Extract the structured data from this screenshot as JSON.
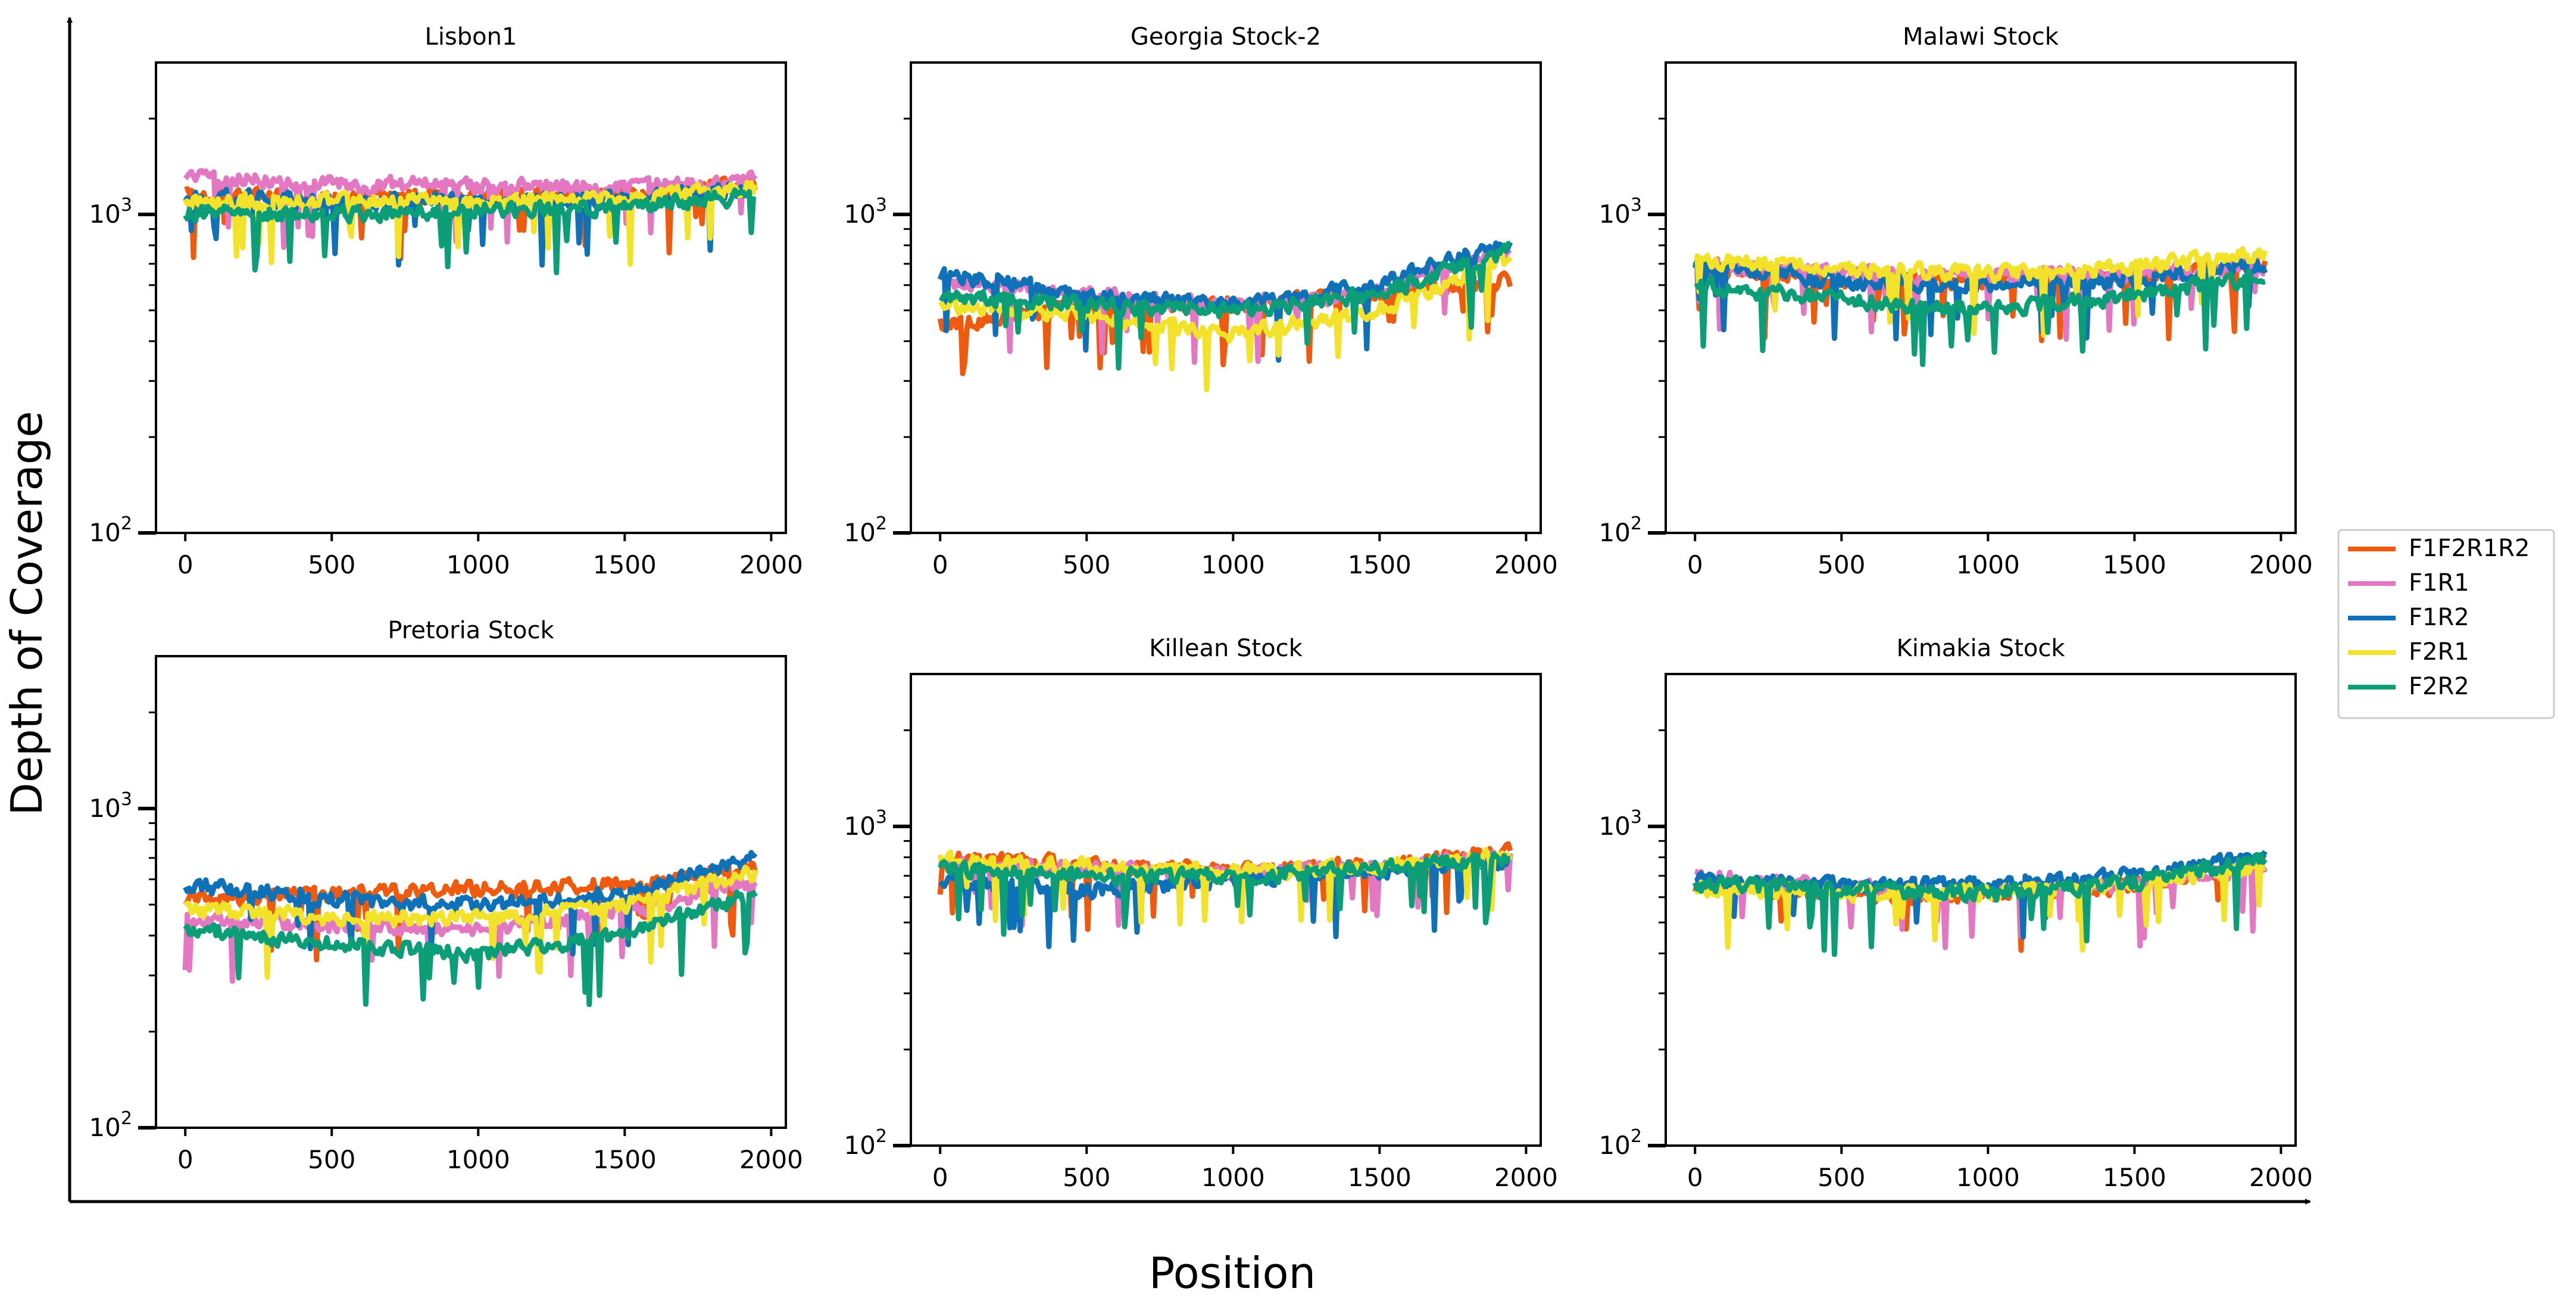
{
  "figure": {
    "ylabel": "Depth of Coverage",
    "xlabel": "Position"
  },
  "legend": {
    "placement": "right",
    "entries": [
      {
        "name": "F1F2R1R2",
        "color": "#F05A0F"
      },
      {
        "name": "F1R1",
        "color": "#E377C2"
      },
      {
        "name": "F1R2",
        "color": "#0F72B8"
      },
      {
        "name": "F2R1",
        "color": "#F2E22A"
      },
      {
        "name": "F2R2",
        "color": "#0B9E77"
      }
    ]
  },
  "chart_data": [
    {
      "type": "line",
      "title": "Lisbon1",
      "yscale": "log",
      "xlim": [
        -100,
        2050
      ],
      "ylim": [
        100,
        3000
      ],
      "xticks": [
        "0",
        "500",
        "1000",
        "1500",
        "2000"
      ],
      "yticks": [
        "10^2",
        "10^3"
      ],
      "series": [
        {
          "name": "F1F2R1R2",
          "levels": [
            [
              0,
              1150
            ],
            [
              500,
              1120
            ],
            [
              1000,
              1150
            ],
            [
              1500,
              1150
            ],
            [
              1950,
              1250
            ]
          ]
        },
        {
          "name": "F1R1",
          "levels": [
            [
              0,
              1300
            ],
            [
              500,
              1250
            ],
            [
              1000,
              1230
            ],
            [
              1500,
              1220
            ],
            [
              1950,
              1280
            ]
          ]
        },
        {
          "name": "F1R2",
          "levels": [
            [
              0,
              1150
            ],
            [
              500,
              1100
            ],
            [
              1000,
              1100
            ],
            [
              1500,
              1120
            ],
            [
              1950,
              1200
            ]
          ]
        },
        {
          "name": "F2R1",
          "levels": [
            [
              0,
              1100
            ],
            [
              500,
              1100
            ],
            [
              1000,
              1100
            ],
            [
              1500,
              1120
            ],
            [
              1950,
              1220
            ]
          ]
        },
        {
          "name": "F2R2",
          "levels": [
            [
              0,
              1020
            ],
            [
              500,
              1000
            ],
            [
              1000,
              1030
            ],
            [
              1500,
              1050
            ],
            [
              1950,
              1150
            ]
          ]
        }
      ]
    },
    {
      "type": "line",
      "title": "Georgia Stock-2",
      "yscale": "log",
      "xlim": [
        -100,
        2050
      ],
      "ylim": [
        100,
        3000
      ],
      "xticks": [
        "0",
        "500",
        "1000",
        "1500",
        "2000"
      ],
      "yticks": [
        "10^2",
        "10^3"
      ],
      "series": [
        {
          "name": "F1F2R1R2",
          "levels": [
            [
              0,
              450
            ],
            [
              500,
              520
            ],
            [
              1000,
              520
            ],
            [
              1500,
              560
            ],
            [
              1950,
              620
            ]
          ]
        },
        {
          "name": "F1R1",
          "levels": [
            [
              0,
              620
            ],
            [
              500,
              560
            ],
            [
              1000,
              520
            ],
            [
              1500,
              580
            ],
            [
              1950,
              780
            ]
          ]
        },
        {
          "name": "F1R2",
          "levels": [
            [
              0,
              650
            ],
            [
              500,
              560
            ],
            [
              1000,
              520
            ],
            [
              1500,
              600
            ],
            [
              1950,
              820
            ]
          ]
        },
        {
          "name": "F2R1",
          "levels": [
            [
              0,
              520
            ],
            [
              500,
              480
            ],
            [
              1000,
              420
            ],
            [
              1500,
              500
            ],
            [
              1950,
              720
            ]
          ]
        },
        {
          "name": "F2R2",
          "levels": [
            [
              0,
              560
            ],
            [
              500,
              520
            ],
            [
              1000,
              500
            ],
            [
              1500,
              560
            ],
            [
              1950,
              780
            ]
          ]
        }
      ]
    },
    {
      "type": "line",
      "title": "Malawi Stock",
      "yscale": "log",
      "xlim": [
        -100,
        2050
      ],
      "ylim": [
        100,
        3000
      ],
      "xticks": [
        "0",
        "500",
        "1000",
        "1500",
        "2000"
      ],
      "yticks": [
        "10^2",
        "10^3"
      ],
      "series": [
        {
          "name": "F1F2R1R2",
          "levels": [
            [
              0,
              680
            ],
            [
              500,
              620
            ],
            [
              1000,
              620
            ],
            [
              1500,
              640
            ],
            [
              1950,
              700
            ]
          ]
        },
        {
          "name": "F1R1",
          "levels": [
            [
              0,
              700
            ],
            [
              500,
              650
            ],
            [
              1000,
              640
            ],
            [
              1500,
              650
            ],
            [
              1950,
              700
            ]
          ]
        },
        {
          "name": "F1R2",
          "levels": [
            [
              0,
              700
            ],
            [
              500,
              620
            ],
            [
              1000,
              600
            ],
            [
              1500,
              630
            ],
            [
              1950,
              690
            ]
          ]
        },
        {
          "name": "F2R1",
          "levels": [
            [
              0,
              720
            ],
            [
              500,
              680
            ],
            [
              1000,
              650
            ],
            [
              1500,
              680
            ],
            [
              1950,
              760
            ]
          ]
        },
        {
          "name": "F2R2",
          "levels": [
            [
              0,
              600
            ],
            [
              500,
              540
            ],
            [
              1000,
              500
            ],
            [
              1500,
              560
            ],
            [
              1950,
              640
            ]
          ]
        }
      ]
    },
    {
      "type": "line",
      "title": "Pretoria Stock",
      "yscale": "log",
      "xlim": [
        -100,
        2050
      ],
      "ylim": [
        100,
        3000
      ],
      "xticks": [
        "0",
        "500",
        "1000",
        "1500",
        "2000"
      ],
      "yticks": [
        "10^2",
        "10^3"
      ],
      "series": [
        {
          "name": "F1F2R1R2",
          "levels": [
            [
              0,
              520
            ],
            [
              500,
              540
            ],
            [
              1000,
              560
            ],
            [
              1500,
              580
            ],
            [
              1950,
              650
            ]
          ]
        },
        {
          "name": "F1R1",
          "levels": [
            [
              0,
              460
            ],
            [
              500,
              430
            ],
            [
              1000,
              420
            ],
            [
              1500,
              470
            ],
            [
              1950,
              600
            ]
          ]
        },
        {
          "name": "F1R2",
          "levels": [
            [
              0,
              580
            ],
            [
              500,
              520
            ],
            [
              1000,
              500
            ],
            [
              1500,
              540
            ],
            [
              1950,
              700
            ]
          ]
        },
        {
          "name": "F2R1",
          "levels": [
            [
              0,
              480
            ],
            [
              500,
              460
            ],
            [
              1000,
              450
            ],
            [
              1500,
              500
            ],
            [
              1950,
              630
            ]
          ]
        },
        {
          "name": "F2R2",
          "levels": [
            [
              0,
              420
            ],
            [
              500,
              380
            ],
            [
              1000,
              350
            ],
            [
              1500,
              400
            ],
            [
              1950,
              540
            ]
          ]
        }
      ]
    },
    {
      "type": "line",
      "title": "Killean Stock",
      "yscale": "log",
      "xlim": [
        -100,
        2050
      ],
      "ylim": [
        100,
        3000
      ],
      "xticks": [
        "0",
        "500",
        "1000",
        "1500",
        "2000"
      ],
      "yticks": [
        "10^2",
        "10^3"
      ],
      "series": [
        {
          "name": "F1F2R1R2",
          "levels": [
            [
              0,
              800
            ],
            [
              500,
              760
            ],
            [
              1000,
              720
            ],
            [
              1500,
              760
            ],
            [
              1950,
              830
            ]
          ]
        },
        {
          "name": "F1R1",
          "levels": [
            [
              0,
              760
            ],
            [
              500,
              730
            ],
            [
              1000,
              710
            ],
            [
              1500,
              740
            ],
            [
              1950,
              800
            ]
          ]
        },
        {
          "name": "F1R2",
          "levels": [
            [
              0,
              680
            ],
            [
              500,
              630
            ],
            [
              1000,
              680
            ],
            [
              1500,
              730
            ],
            [
              1950,
              780
            ]
          ]
        },
        {
          "name": "F2R1",
          "levels": [
            [
              0,
              780
            ],
            [
              500,
              750
            ],
            [
              1000,
              720
            ],
            [
              1500,
              750
            ],
            [
              1950,
              810
            ]
          ]
        },
        {
          "name": "F2R2",
          "levels": [
            [
              0,
              740
            ],
            [
              500,
              700
            ],
            [
              1000,
              700
            ],
            [
              1500,
              740
            ],
            [
              1950,
              790
            ]
          ]
        }
      ]
    },
    {
      "type": "line",
      "title": "Kimakia Stock",
      "yscale": "log",
      "xlim": [
        -100,
        2050
      ],
      "ylim": [
        100,
        3000
      ],
      "xticks": [
        "0",
        "500",
        "1000",
        "1500",
        "2000"
      ],
      "yticks": [
        "10^2",
        "10^3"
      ],
      "series": [
        {
          "name": "F1F2R1R2",
          "levels": [
            [
              0,
              640
            ],
            [
              500,
              620
            ],
            [
              1000,
              610
            ],
            [
              1500,
              650
            ],
            [
              1950,
              780
            ]
          ]
        },
        {
          "name": "F1R1",
          "levels": [
            [
              0,
              700
            ],
            [
              500,
              640
            ],
            [
              1000,
              630
            ],
            [
              1500,
              660
            ],
            [
              1950,
              740
            ]
          ]
        },
        {
          "name": "F1R2",
          "levels": [
            [
              0,
              680
            ],
            [
              500,
              650
            ],
            [
              1000,
              660
            ],
            [
              1500,
              700
            ],
            [
              1950,
              800
            ]
          ]
        },
        {
          "name": "F2R1",
          "levels": [
            [
              0,
              650
            ],
            [
              500,
              620
            ],
            [
              1000,
              620
            ],
            [
              1500,
              660
            ],
            [
              1950,
              760
            ]
          ]
        },
        {
          "name": "F2R2",
          "levels": [
            [
              0,
              660
            ],
            [
              500,
              630
            ],
            [
              1000,
              620
            ],
            [
              1500,
              670
            ],
            [
              1950,
              800
            ]
          ]
        }
      ]
    }
  ]
}
